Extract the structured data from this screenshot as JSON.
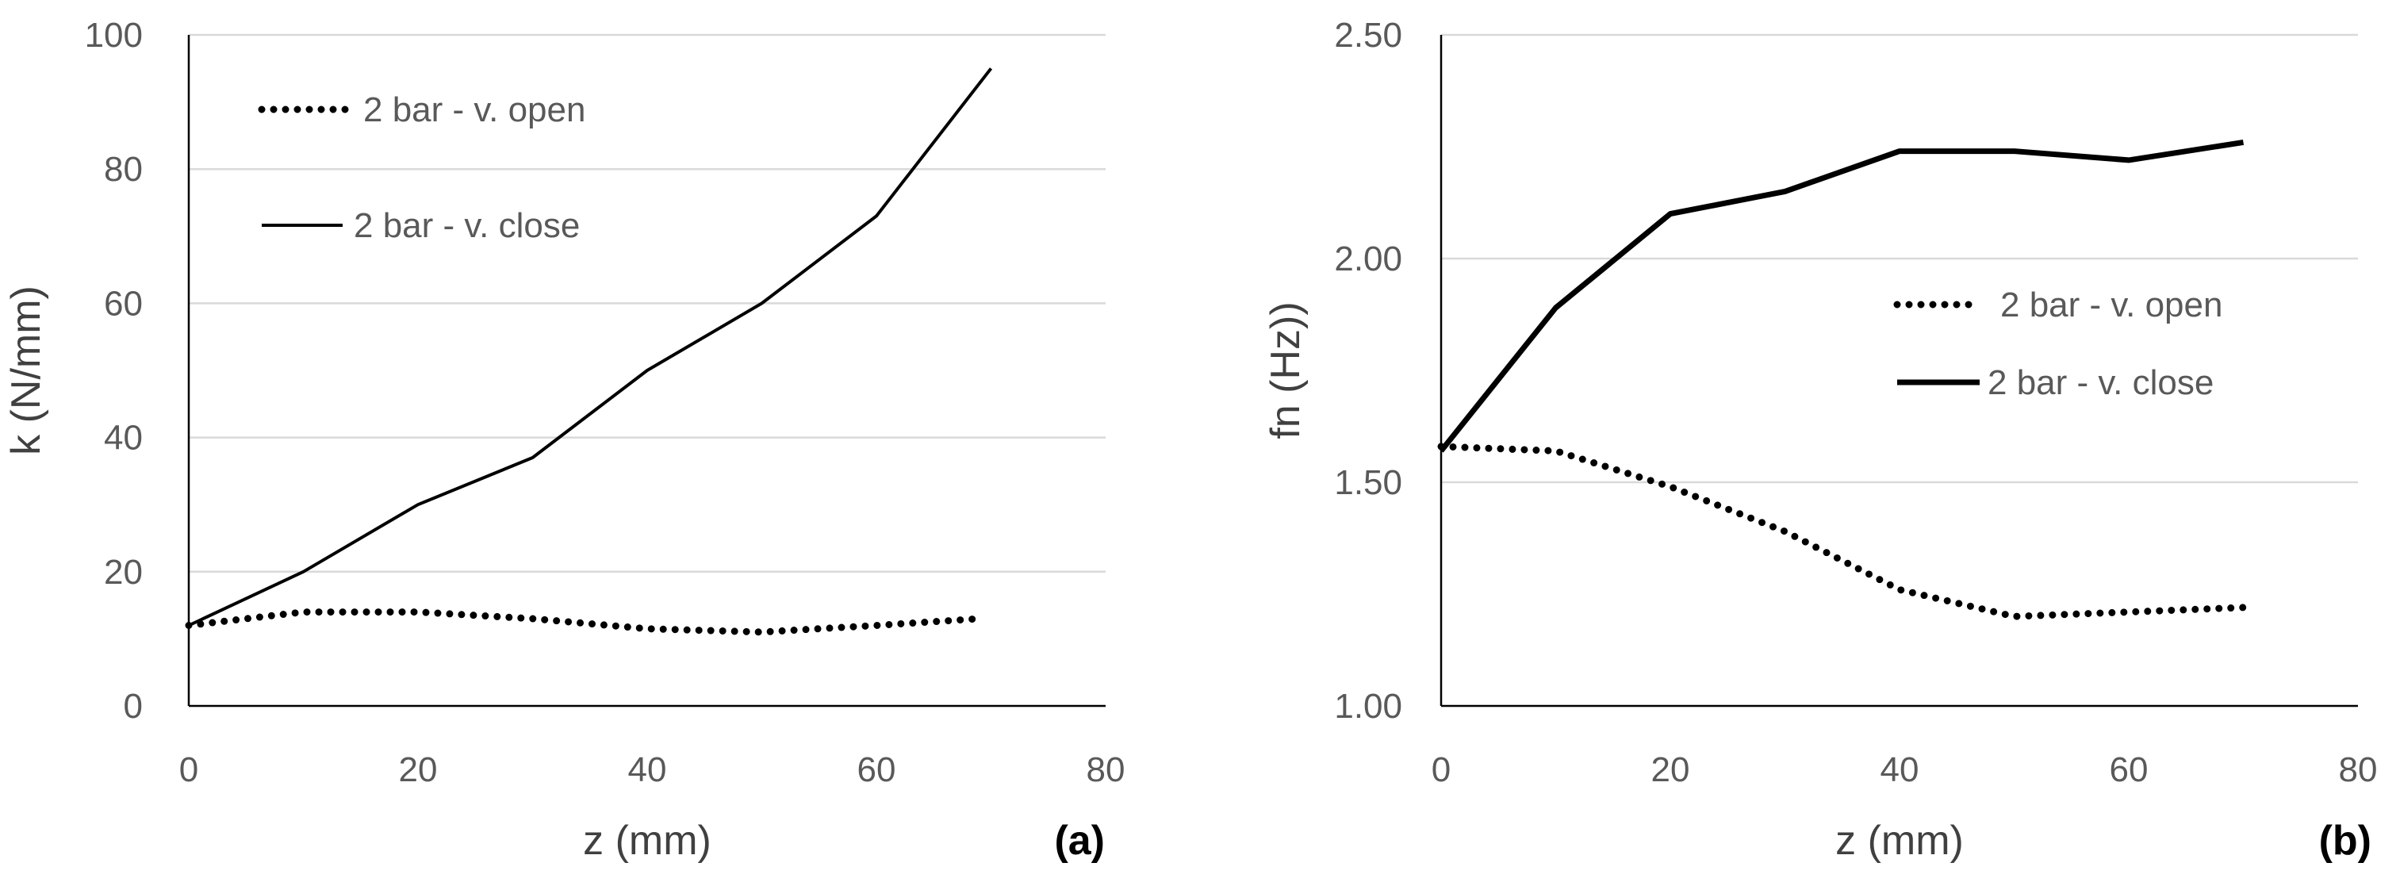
{
  "chart_data": [
    {
      "type": "line",
      "panel_label": "(a)",
      "title": "",
      "xlabel": "z (mm)",
      "ylabel": "k (N/mm)",
      "xlim": [
        0,
        80
      ],
      "ylim": [
        0,
        100
      ],
      "x_ticks": [
        0,
        20,
        40,
        60,
        80
      ],
      "y_ticks": [
        0,
        20,
        40,
        60,
        80,
        100
      ],
      "x_tick_labels": [
        "0",
        "20",
        "40",
        "60",
        "80"
      ],
      "y_tick_labels": [
        "0",
        "20",
        "40",
        "60",
        "80",
        "100"
      ],
      "grid": "horizontal",
      "legend_position": "top-left",
      "series": [
        {
          "name": "2 bar - v. open",
          "style": "dotted",
          "color": "#000000",
          "x": [
            0,
            10,
            20,
            30,
            40,
            50,
            60,
            69
          ],
          "y": [
            12,
            14,
            14,
            13,
            11.5,
            11,
            12,
            13
          ]
        },
        {
          "name": "2 bar - v. close",
          "style": "solid",
          "color": "#000000",
          "x": [
            0,
            10,
            20,
            30,
            40,
            50,
            60,
            70
          ],
          "y": [
            12,
            20,
            30,
            37,
            50,
            60,
            73,
            95
          ]
        }
      ]
    },
    {
      "type": "line",
      "panel_label": "(b)",
      "title": "",
      "xlabel": "z (mm)",
      "ylabel": "fn (Hz))",
      "xlim": [
        0,
        80
      ],
      "ylim": [
        1.0,
        2.5
      ],
      "x_ticks": [
        0,
        20,
        40,
        60,
        80
      ],
      "y_ticks": [
        1.0,
        1.5,
        2.0,
        2.5
      ],
      "x_tick_labels": [
        "0",
        "20",
        "40",
        "60",
        "80"
      ],
      "y_tick_labels": [
        "1.00",
        "1.50",
        "2.00",
        "2.50"
      ],
      "grid": "horizontal",
      "legend_position": "center-right",
      "series": [
        {
          "name": "2 bar - v. open",
          "style": "dotted",
          "color": "#000000",
          "x": [
            0,
            10,
            20,
            30,
            40,
            50,
            60,
            70
          ],
          "y": [
            1.58,
            1.57,
            1.49,
            1.39,
            1.26,
            1.2,
            1.21,
            1.22
          ]
        },
        {
          "name": "2 bar - v. close",
          "style": "solid-thick",
          "color": "#000000",
          "x": [
            0,
            10,
            20,
            30,
            40,
            50,
            60,
            70
          ],
          "y": [
            1.57,
            1.89,
            2.1,
            2.15,
            2.24,
            2.24,
            2.22,
            2.26
          ]
        }
      ]
    }
  ]
}
